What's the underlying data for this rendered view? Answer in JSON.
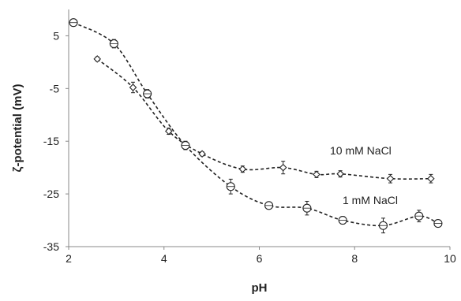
{
  "chart_data": {
    "type": "scatter",
    "title": "",
    "xlabel": "pH",
    "ylabel": "ζ-potential (mV)",
    "xlim": [
      2,
      10
    ],
    "ylim": [
      -35,
      10
    ],
    "x_ticks": [
      2,
      4,
      6,
      8,
      10
    ],
    "x_tick_labels": [
      "2",
      "4",
      "6",
      "8",
      "10"
    ],
    "y_ticks": [
      5,
      -5,
      -15,
      -25,
      -35
    ],
    "y_tick_labels": [
      "5",
      "-5",
      "-15",
      "-25",
      "-35"
    ],
    "grid": false,
    "legend": "none",
    "line_style": "dashed",
    "line_color": "#222222",
    "series": [
      {
        "name": "10 mM NaCl",
        "marker": "diamond",
        "points": [
          {
            "x": 2.6,
            "y": 0.6,
            "err": 0.4
          },
          {
            "x": 3.35,
            "y": -4.8,
            "err": 1.0
          },
          {
            "x": 4.1,
            "y": -13.1,
            "err": 0.6
          },
          {
            "x": 4.8,
            "y": -17.4,
            "err": 0.4
          },
          {
            "x": 5.65,
            "y": -20.3,
            "err": 0.6
          },
          {
            "x": 6.5,
            "y": -20.0,
            "err": 1.2
          },
          {
            "x": 7.2,
            "y": -21.3,
            "err": 0.6
          },
          {
            "x": 7.7,
            "y": -21.2,
            "err": 0.6
          },
          {
            "x": 8.75,
            "y": -22.1,
            "err": 0.8
          },
          {
            "x": 9.6,
            "y": -22.1,
            "err": 0.8
          }
        ]
      },
      {
        "name": "1 mM NaCl",
        "marker": "circle",
        "points": [
          {
            "x": 2.1,
            "y": 7.5,
            "err": 0.3
          },
          {
            "x": 2.95,
            "y": 3.5,
            "err": 0.8
          },
          {
            "x": 3.65,
            "y": -6.0,
            "err": 0.8
          },
          {
            "x": 4.45,
            "y": -15.8,
            "err": 0.8
          },
          {
            "x": 5.4,
            "y": -23.6,
            "err": 1.4
          },
          {
            "x": 6.2,
            "y": -27.2,
            "err": 0.6
          },
          {
            "x": 7.0,
            "y": -27.7,
            "err": 1.3
          },
          {
            "x": 7.75,
            "y": -30.0,
            "err": 0.7
          },
          {
            "x": 8.6,
            "y": -31.0,
            "err": 1.4
          },
          {
            "x": 9.35,
            "y": -29.2,
            "err": 1.1
          },
          {
            "x": 9.75,
            "y": -30.6,
            "err": 0.6
          }
        ]
      }
    ],
    "annotations": [
      {
        "text": "10 mM NaCl",
        "series": "10 mM NaCl"
      },
      {
        "text": "1 mM NaCl",
        "series": "1 mM NaCl"
      }
    ]
  }
}
